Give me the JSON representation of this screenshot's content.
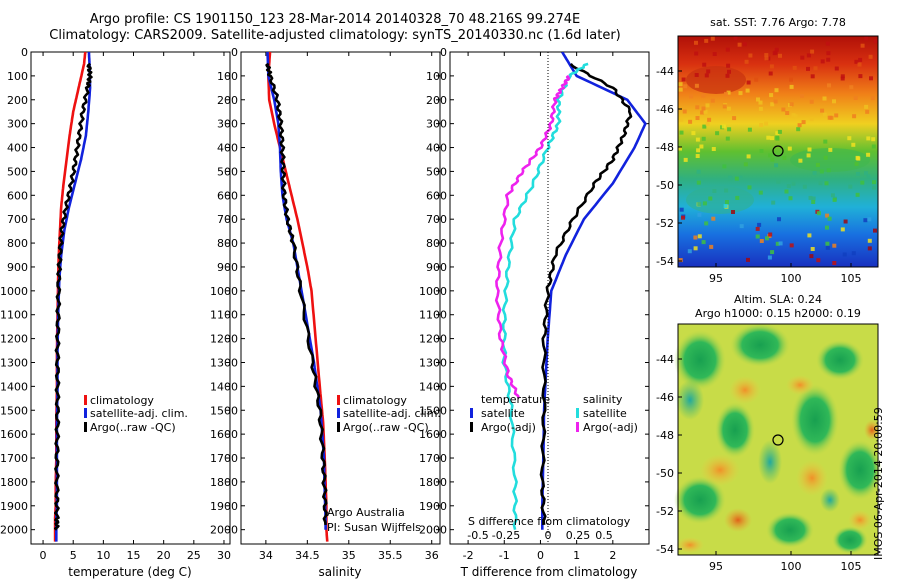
{
  "header": {
    "line1": "Argo profile: CS 1901150_123 28-Mar-2014 20140328_70 48.216S 99.274E",
    "line2": "Climatology: CARS2009. Satellite-adjusted climatology: synTS_20140330.nc (1.6d later)"
  },
  "depth_axis": {
    "ticks": [
      "0",
      "100",
      "200",
      "300",
      "400",
      "500",
      "600",
      "700",
      "800",
      "900",
      "1000",
      "1100",
      "1200",
      "1300",
      "1400",
      "1500",
      "1600",
      "1700",
      "1800",
      "1900",
      "2000"
    ],
    "range": [
      0,
      2060
    ]
  },
  "chart_data": [
    {
      "name": "temperature",
      "type": "line",
      "xlabel": "temperature (deg C)",
      "xlim": [
        -2,
        31
      ],
      "xticks": [
        "0",
        "5",
        "10",
        "15",
        "20",
        "25",
        "30"
      ],
      "ylim": [
        0,
        2060
      ],
      "legend": [
        "climatology",
        "satellite-adj. clim.",
        "Argo(..raw -QC)"
      ],
      "series": [
        {
          "name": "climatology",
          "color": "#ee1111",
          "x": [
            7.0,
            6.8,
            5.9,
            5.0,
            4.4,
            3.9,
            3.4,
            3.0,
            2.8,
            2.6,
            2.5,
            2.4,
            2.3,
            2.3,
            2.2,
            2.2,
            2.1,
            2.1,
            2.0,
            2.0,
            2.0
          ],
          "y": [
            0,
            50,
            150,
            250,
            350,
            450,
            550,
            650,
            750,
            850,
            950,
            1100,
            1250,
            1400,
            1550,
            1700,
            1800,
            1900,
            1950,
            2000,
            2050
          ]
        },
        {
          "name": "satellite-adj. clim.",
          "color": "#1122dd",
          "x": [
            7.6,
            7.7,
            7.8,
            7.5,
            7.1,
            6.3,
            5.3,
            4.3,
            3.5,
            3.0,
            2.7,
            2.5,
            2.4,
            2.4,
            2.3,
            2.3,
            2.3,
            2.3,
            2.2,
            2.2,
            2.2
          ],
          "y": [
            0,
            50,
            150,
            250,
            350,
            450,
            550,
            650,
            750,
            850,
            950,
            1100,
            1250,
            1400,
            1550,
            1700,
            1800,
            1900,
            1950,
            2000,
            2050
          ]
        },
        {
          "name": "Argo(..raw -QC)",
          "color": "#000000",
          "x": [
            7.6,
            7.8,
            7.4,
            6.6,
            6.0,
            5.4,
            4.7,
            3.8,
            3.1,
            2.8,
            2.6,
            2.5,
            2.4,
            2.4,
            2.4,
            2.3,
            2.3,
            2.3,
            2.3
          ],
          "y": [
            50,
            100,
            150,
            250,
            350,
            450,
            550,
            650,
            750,
            850,
            950,
            1100,
            1250,
            1400,
            1550,
            1700,
            1850,
            1950,
            2000
          ]
        }
      ]
    },
    {
      "name": "salinity",
      "type": "line",
      "xlabel": "salinity",
      "xlim": [
        33.7,
        36.1
      ],
      "xticks": [
        "34",
        "34.5",
        "35",
        "35.5",
        "36"
      ],
      "ylim": [
        0,
        2060
      ],
      "legend": [
        "climatology",
        "satellite-adj. clim.",
        "Argo(..raw -QC)"
      ],
      "series": [
        {
          "name": "climatology",
          "color": "#ee1111",
          "x": [
            34.05,
            34.03,
            34.04,
            34.1,
            34.17,
            34.24,
            34.31,
            34.38,
            34.44,
            34.5,
            34.55,
            34.6,
            34.65,
            34.69,
            34.71,
            34.72,
            34.73,
            34.73,
            34.74
          ],
          "y": [
            0,
            100,
            200,
            300,
            400,
            500,
            600,
            700,
            800,
            900,
            1000,
            1200,
            1400,
            1550,
            1700,
            1800,
            1900,
            2000,
            2050
          ]
        },
        {
          "name": "satellite-adj. clim.",
          "color": "#1122dd",
          "x": [
            34.02,
            34.03,
            34.1,
            34.15,
            34.17,
            34.18,
            34.2,
            34.25,
            34.33,
            34.43,
            34.58,
            34.66,
            34.7,
            34.71,
            34.72,
            34.72
          ],
          "y": [
            0,
            100,
            200,
            300,
            400,
            500,
            600,
            700,
            800,
            1000,
            1300,
            1500,
            1700,
            1850,
            1950,
            2000
          ]
        },
        {
          "name": "Argo(..raw -QC)",
          "color": "#000000",
          "x": [
            34.02,
            34.05,
            34.14,
            34.18,
            34.2,
            34.21,
            34.22,
            34.26,
            34.33,
            34.42,
            34.56,
            34.65,
            34.69,
            34.71,
            34.72
          ],
          "y": [
            50,
            100,
            200,
            300,
            400,
            500,
            600,
            700,
            800,
            1000,
            1300,
            1500,
            1700,
            1850,
            1980
          ]
        }
      ],
      "annotation": [
        "Argo Australia",
        "PI: Susan Wijffels"
      ]
    },
    {
      "name": "difference",
      "type": "line",
      "xlabel": "T difference from climatology",
      "xlabel_top": "S difference from climatology",
      "xlim": [
        -2.5,
        3.0
      ],
      "xticks": [
        "-2",
        "-1",
        "0",
        "1",
        "2"
      ],
      "xticks_top": [
        "-0.5",
        "-0.25",
        "0",
        "0.25",
        "0.5"
      ],
      "ylim": [
        0,
        2060
      ],
      "legend": {
        "temperature_title": "temperature",
        "salinity_title": "salinity",
        "entries": [
          "satellite",
          "Argo(-adj)",
          "satellite",
          "Argo(-adj)"
        ]
      },
      "series": [
        {
          "name": "T satellite",
          "color": "#1122dd",
          "x": [
            0.6,
            1.0,
            2.4,
            2.9,
            2.6,
            2.0,
            1.2,
            0.7,
            0.3,
            0.2,
            0.1,
            0.08,
            0.05,
            0.05
          ],
          "y": [
            0,
            100,
            200,
            300,
            400,
            550,
            700,
            850,
            1000,
            1200,
            1500,
            1700,
            1900,
            2000
          ]
        },
        {
          "name": "T Argo(-adj)",
          "color": "#000000",
          "x": [
            0.8,
            2.0,
            2.5,
            2.3,
            2.0,
            1.5,
            0.9,
            0.4,
            0.2,
            0.1,
            0.1,
            0.05,
            0.1
          ],
          "y": [
            50,
            150,
            250,
            350,
            450,
            550,
            700,
            850,
            1000,
            1200,
            1500,
            1800,
            1980
          ]
        },
        {
          "name": "S satellite",
          "color": "#22dddd",
          "x": [
            1.3,
            0.8,
            0.5,
            0.5,
            0.2,
            -0.2,
            -0.7,
            -0.9,
            -1.0,
            -1.0,
            -0.8,
            -0.7,
            -0.7
          ],
          "y": [
            50,
            100,
            200,
            300,
            400,
            550,
            700,
            900,
            1100,
            1300,
            1500,
            1800,
            2000
          ]
        },
        {
          "name": "S Argo(-adj)",
          "color": "#ee22ee",
          "x": [
            0.8,
            0.6,
            0.4,
            0.3,
            0.0,
            -0.5,
            -0.9,
            -1.1,
            -1.2,
            -1.1,
            -0.9,
            -0.6
          ],
          "y": [
            100,
            150,
            200,
            300,
            400,
            500,
            600,
            800,
            1000,
            1200,
            1350,
            1450
          ]
        }
      ]
    },
    {
      "name": "sst-map",
      "type": "heatmap",
      "title": "sat. SST: 7.76 Argo: 7.78",
      "xticks": [
        "95",
        "100",
        "105"
      ],
      "yticks": [
        "-44",
        "-46",
        "-48",
        "-50",
        "-52",
        "-54"
      ]
    },
    {
      "name": "sla-map",
      "type": "heatmap",
      "title_line1": "Altim. SLA: 0.24",
      "title_line2": "Argo h1000: 0.15 h2000: 0.19",
      "xticks": [
        "95",
        "100",
        "105"
      ],
      "yticks": [
        "-44",
        "-46",
        "-48",
        "-50",
        "-52",
        "-54"
      ]
    }
  ],
  "footer": {
    "credit": "IMOS 06-Apr-2014 20:00:59"
  }
}
